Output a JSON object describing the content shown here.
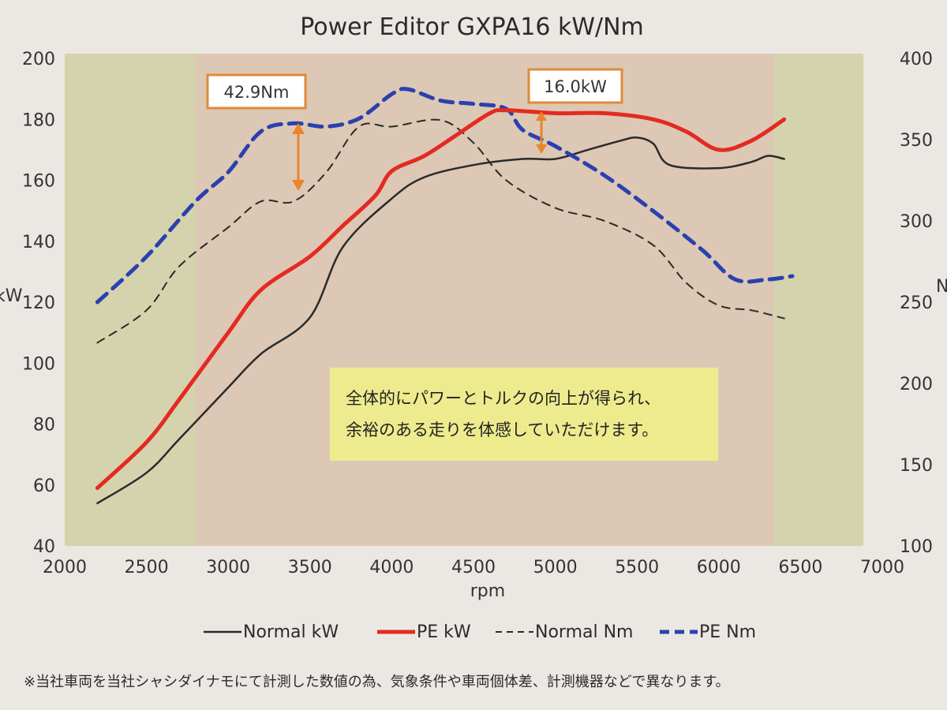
{
  "chart_data": {
    "type": "line",
    "title": "Power Editor GXPA16 kW/Nm",
    "xlabel": "rpm",
    "ylabel_left": "kW",
    "ylabel_right": "Nm",
    "xlim": [
      2000,
      7000
    ],
    "ylim_left": [
      40,
      200
    ],
    "ylim_right": [
      100,
      400
    ],
    "x_ticks": [
      "2000",
      "2500",
      "3000",
      "3500",
      "4000",
      "4500",
      "5000",
      "5500",
      "6000",
      "6500",
      "7000"
    ],
    "y_ticks_left": [
      "40",
      "60",
      "80",
      "100",
      "120",
      "140",
      "160",
      "180",
      "200"
    ],
    "y_ticks_right": [
      "100",
      "150",
      "200",
      "250",
      "300",
      "350",
      "400"
    ],
    "grid": false,
    "legend_position": "bottom",
    "colors": {
      "normal_kw": "#2a2a2a",
      "pe_kw": "#e42a22",
      "normal_nm": "#2a2a2a",
      "pe_nm": "#2b40b0",
      "bg_outer": "#d5d3ad",
      "bg_inner": "#dcc8b4",
      "annotation_arrow": "#e8862c",
      "annotation_border": "#e08a3a",
      "message_box": "#eeeb8e"
    },
    "series": [
      {
        "name": "Normal kW",
        "axis": "left",
        "style": "solid",
        "x": [
          2200,
          2500,
          2700,
          3000,
          3200,
          3500,
          3700,
          4000,
          4200,
          4500,
          4800,
          5000,
          5200,
          5400,
          5500,
          5600,
          5700,
          6000,
          6200,
          6300,
          6400
        ],
        "y": [
          54,
          64,
          75,
          92,
          103,
          115,
          138,
          154,
          161,
          165,
          167,
          167,
          170,
          173,
          174,
          172,
          165,
          164,
          166,
          168,
          167
        ]
      },
      {
        "name": "PE kW",
        "axis": "left",
        "style": "solid",
        "x": [
          2200,
          2500,
          2700,
          3000,
          3200,
          3500,
          3700,
          3900,
          4000,
          4200,
          4400,
          4600,
          4700,
          5000,
          5300,
          5600,
          5800,
          6000,
          6200,
          6400
        ],
        "y": [
          59,
          74,
          88,
          110,
          124,
          135,
          145,
          155,
          163,
          168,
          175,
          182,
          183,
          182,
          182,
          180,
          176,
          170,
          173,
          180
        ]
      },
      {
        "name": "Normal Nm",
        "axis": "right",
        "style": "dashed",
        "x": [
          2200,
          2500,
          2700,
          3000,
          3200,
          3400,
          3600,
          3800,
          4000,
          4300,
          4500,
          4700,
          5000,
          5300,
          5600,
          5800,
          6000,
          6200,
          6400
        ],
        "y": [
          225,
          245,
          272,
          296,
          312,
          312,
          330,
          358,
          358,
          362,
          348,
          325,
          308,
          300,
          285,
          262,
          248,
          245,
          240
        ]
      },
      {
        "name": "PE Nm",
        "axis": "right",
        "style": "dashed",
        "x": [
          2200,
          2500,
          2800,
          3000,
          3200,
          3400,
          3600,
          3800,
          4000,
          4100,
          4300,
          4500,
          4700,
          4800,
          5000,
          5300,
          5600,
          5900,
          6100,
          6300,
          6450
        ],
        "y": [
          250,
          278,
          312,
          330,
          355,
          360,
          358,
          363,
          378,
          381,
          374,
          372,
          369,
          356,
          346,
          328,
          306,
          282,
          264,
          264,
          266
        ]
      }
    ],
    "annotations": [
      {
        "text": "42.9Nm"
      },
      {
        "text": "16.0kW"
      }
    ],
    "message_lines": [
      "全体的にパワーとトルクの向上が得られ、",
      "余裕のある走りを体感していただけます。"
    ],
    "footnote": "※当社車両を当社シャシダイナモにて計測した数値の為、気象条件や車両個体差、計測機器などで異なります。"
  }
}
